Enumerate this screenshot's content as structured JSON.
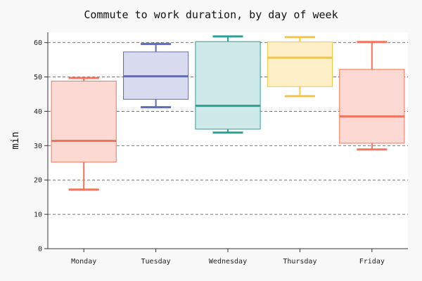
{
  "chart_data": {
    "type": "box",
    "title": "Commute to work duration, by day of week",
    "xlabel": "",
    "ylabel": "min",
    "ylim": [
      0,
      63
    ],
    "yticks": [
      0,
      10,
      20,
      30,
      40,
      50,
      60
    ],
    "grid": "horizontal dashed",
    "categories": [
      "Monday",
      "Tuesday",
      "Wednesday",
      "Thursday",
      "Friday"
    ],
    "boxes": [
      {
        "name": "Monday",
        "min": 17.2,
        "q1": 25.2,
        "median": 31.4,
        "q3": 48.8,
        "max": 49.7,
        "color": "#f4735a",
        "fill": "#fdd9d3"
      },
      {
        "name": "Tuesday",
        "min": 41.2,
        "q1": 43.5,
        "median": 50.2,
        "q3": 57.3,
        "max": 59.6,
        "color": "#5b6bbd",
        "fill": "#d8dbf0"
      },
      {
        "name": "Wednesday",
        "min": 33.8,
        "q1": 34.8,
        "median": 41.6,
        "q3": 60.3,
        "max": 61.8,
        "color": "#2aa198",
        "fill": "#cdeae8"
      },
      {
        "name": "Thursday",
        "min": 44.4,
        "q1": 47.2,
        "median": 55.6,
        "q3": 60.2,
        "max": 61.6,
        "color": "#f5c542",
        "fill": "#fdf0c8"
      },
      {
        "name": "Friday",
        "min": 28.9,
        "q1": 30.7,
        "median": 38.5,
        "q3": 52.2,
        "max": 60.2,
        "color": "#f4735a",
        "fill": "#fdd9d3"
      }
    ]
  }
}
